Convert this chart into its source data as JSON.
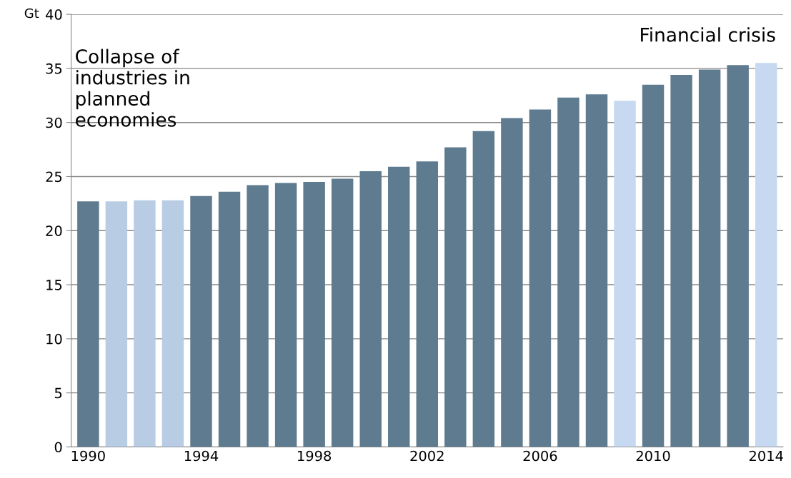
{
  "chart_data": {
    "type": "bar",
    "ylabel": "Gt",
    "categories": [
      "1990",
      null,
      null,
      null,
      "1994",
      null,
      null,
      null,
      "1998",
      null,
      null,
      null,
      "2002",
      null,
      null,
      null,
      "2006",
      null,
      null,
      null,
      "2010",
      null,
      null,
      null,
      "2014"
    ],
    "values": [
      22.7,
      22.7,
      22.8,
      22.8,
      23.2,
      23.6,
      24.2,
      24.4,
      24.5,
      24.8,
      25.5,
      25.9,
      26.4,
      27.7,
      29.2,
      30.4,
      31.2,
      32.3,
      32.6,
      32.0,
      33.5,
      34.4,
      34.9,
      35.3,
      35.5
    ],
    "colors": [
      "#5e7b8f",
      "#b8cce4",
      "#b8cce4",
      "#b8cce4",
      "#5e7b8f",
      "#5e7b8f",
      "#5e7b8f",
      "#5e7b8f",
      "#5e7b8f",
      "#5e7b8f",
      "#5e7b8f",
      "#5e7b8f",
      "#5e7b8f",
      "#5e7b8f",
      "#5e7b8f",
      "#5e7b8f",
      "#5e7b8f",
      "#5e7b8f",
      "#5e7b8f",
      "#c6d9f1",
      "#5e7b8f",
      "#5e7b8f",
      "#5e7b8f",
      "#5e7b8f",
      "#c6d9f1"
    ],
    "ylim": [
      0,
      40
    ],
    "yticks": [
      0,
      5,
      10,
      15,
      20,
      25,
      30,
      35,
      40
    ],
    "grid": "y",
    "annotations": [
      "Collapse of\nindustries in\nplanned\neconomies",
      "Financial crisis"
    ]
  }
}
